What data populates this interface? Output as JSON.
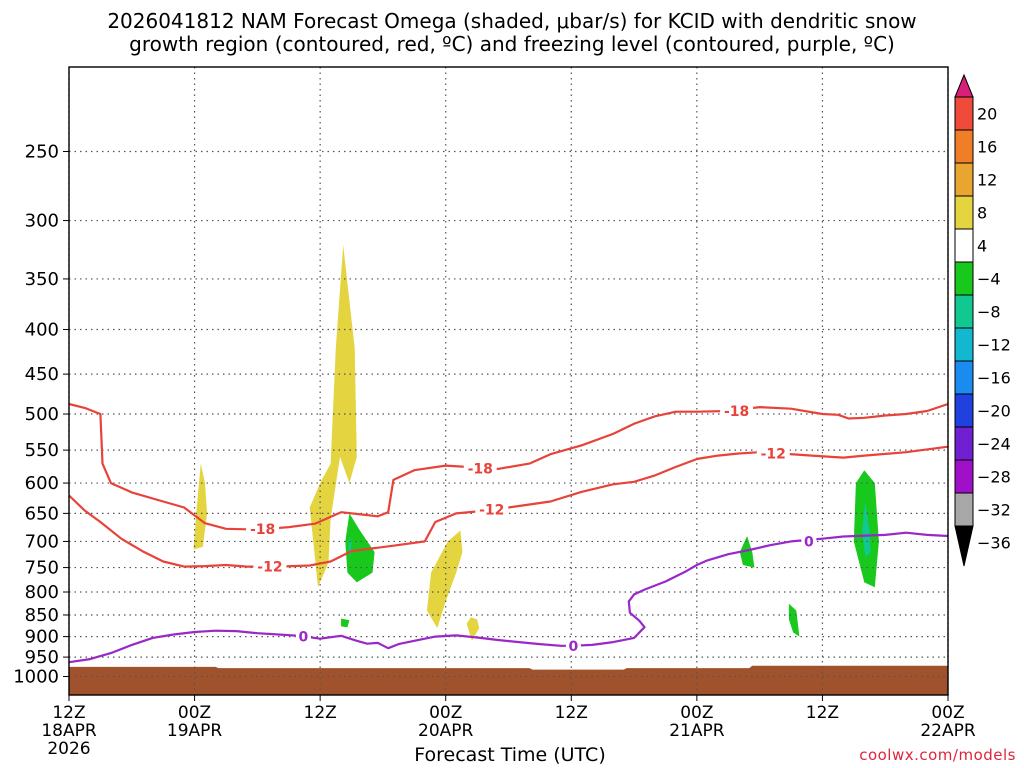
{
  "header": {
    "title_line1": "2026041812 NAM Forecast Omega (shaded, μbar/s) for KCID with dendritic snow",
    "title_line2": "growth region (contoured, red, ºC) and freezing level (contoured, purple, ºC)"
  },
  "credit": "coolwx.com/models",
  "chart_data": {
    "type": "heatmap",
    "title": "2026041812 NAM Forecast Omega (shaded, μbar/s) for KCID with dendritic snow growth region (contoured, red, ºC) and freezing level (contoured, purple, ºC)",
    "xlabel": "Forecast Time (UTC)",
    "ylabel": "",
    "x_axis": {
      "range_hours": [
        0,
        84
      ],
      "ticks": [
        {
          "hour": 0,
          "lines": [
            "12Z",
            "18APR",
            "2026"
          ]
        },
        {
          "hour": 12,
          "lines": [
            "00Z",
            "19APR"
          ]
        },
        {
          "hour": 24,
          "lines": [
            "12Z"
          ]
        },
        {
          "hour": 36,
          "lines": [
            "00Z",
            "20APR"
          ]
        },
        {
          "hour": 48,
          "lines": [
            "12Z"
          ]
        },
        {
          "hour": 60,
          "lines": [
            "00Z",
            "21APR"
          ]
        },
        {
          "hour": 72,
          "lines": [
            "12Z"
          ]
        },
        {
          "hour": 84,
          "lines": [
            "00Z",
            "22APR"
          ]
        }
      ]
    },
    "y_axis": {
      "scale": "log-pressure",
      "range_hpa": [
        1050,
        200
      ],
      "ticks": [
        250,
        300,
        350,
        400,
        450,
        500,
        550,
        600,
        650,
        700,
        750,
        800,
        850,
        900,
        950,
        1000
      ],
      "grid": true
    },
    "colorbar": {
      "levels": [
        "20",
        "16",
        "12",
        "8",
        "4",
        "−4",
        "−8",
        "−12",
        "−16",
        "−20",
        "−24",
        "−28",
        "−32",
        "−36"
      ],
      "colors": [
        "#d81f7a",
        "#f04a3a",
        "#f07e26",
        "#e8a530",
        "#e4d540",
        "#ffffff",
        "#18c81c",
        "#10c890",
        "#12b8d0",
        "#1a8cf0",
        "#2040e0",
        "#7020d0",
        "#a010c8",
        "#a8a8a8",
        "#000000"
      ]
    },
    "omega_regions": [
      {
        "level": "4 to 8",
        "color": "#e4d540",
        "points": [
          [
            12.6,
            570
          ],
          [
            12.2,
            640
          ],
          [
            11.9,
            715
          ],
          [
            12.8,
            710
          ],
          [
            13.2,
            650
          ],
          [
            13.0,
            600
          ]
        ]
      },
      {
        "level": "4 to 8",
        "color": "#e4d540",
        "points": [
          [
            26.2,
            320
          ],
          [
            27.3,
            420
          ],
          [
            27.5,
            560
          ],
          [
            26.8,
            600
          ],
          [
            25.9,
            560
          ],
          [
            25.0,
            660
          ],
          [
            24.8,
            740
          ],
          [
            23.8,
            790
          ],
          [
            23.0,
            640
          ],
          [
            24.0,
            600
          ],
          [
            25.0,
            570
          ],
          [
            25.5,
            420
          ]
        ]
      },
      {
        "level": "4 to 8",
        "color": "#e4d540",
        "points": [
          [
            37.4,
            680
          ],
          [
            36.2,
            700
          ],
          [
            34.6,
            760
          ],
          [
            34.2,
            840
          ],
          [
            35.2,
            880
          ],
          [
            36.0,
            820
          ],
          [
            37.0,
            760
          ],
          [
            37.6,
            720
          ]
        ]
      },
      {
        "level": "4 to 8",
        "color": "#e4d540",
        "points": [
          [
            38.4,
            855
          ],
          [
            38.0,
            870
          ],
          [
            38.5,
            910
          ],
          [
            39.2,
            880
          ],
          [
            39.0,
            860
          ]
        ]
      },
      {
        "level": "-4 to -8",
        "color": "#18c81c",
        "points": [
          [
            26.8,
            650
          ],
          [
            27.8,
            680
          ],
          [
            29.2,
            720
          ],
          [
            29.0,
            760
          ],
          [
            27.5,
            780
          ],
          [
            26.6,
            760
          ],
          [
            26.4,
            700
          ]
        ]
      },
      {
        "level": "-4 to -8",
        "color": "#18c81c",
        "points": [
          [
            26.0,
            858
          ],
          [
            26.8,
            862
          ],
          [
            26.6,
            878
          ],
          [
            26.0,
            876
          ]
        ]
      },
      {
        "level": "-4 to -8",
        "color": "#18c81c",
        "points": [
          [
            64.8,
            690
          ],
          [
            65.3,
            720
          ],
          [
            65.5,
            750
          ],
          [
            64.4,
            745
          ],
          [
            64.1,
            720
          ]
        ]
      },
      {
        "level": "-4 to -8",
        "color": "#18c81c",
        "points": [
          [
            68.8,
            825
          ],
          [
            69.5,
            840
          ],
          [
            69.8,
            900
          ],
          [
            69.2,
            890
          ],
          [
            68.8,
            860
          ]
        ]
      },
      {
        "level": "-4 to -8",
        "color": "#18c81c",
        "points": [
          [
            76.0,
            580
          ],
          [
            77.0,
            600
          ],
          [
            77.4,
            700
          ],
          [
            77.0,
            790
          ],
          [
            76.0,
            780
          ],
          [
            75.0,
            700
          ],
          [
            75.2,
            600
          ]
        ]
      },
      {
        "level": "-8 to -12",
        "color": "#10c890",
        "points": [
          [
            76.1,
            630
          ],
          [
            76.5,
            680
          ],
          [
            76.6,
            720
          ],
          [
            76.1,
            730
          ],
          [
            75.8,
            680
          ]
        ]
      },
      {
        "level": "-8 to -12",
        "color": "#10c890",
        "points": [
          [
            26.8,
            690
          ],
          [
            27.0,
            700
          ],
          [
            26.9,
            730
          ],
          [
            26.7,
            715
          ]
        ]
      }
    ],
    "ground_fill": {
      "color": "#a0522d",
      "bottom_hpa": 1050,
      "top_hpa_by_hour": [
        [
          0,
          975
        ],
        [
          14,
          975
        ],
        [
          14.3,
          978
        ],
        [
          44,
          978
        ],
        [
          44.3,
          982
        ],
        [
          53,
          982
        ],
        [
          53.3,
          978
        ],
        [
          65,
          978
        ],
        [
          65.3,
          972
        ],
        [
          84,
          972
        ]
      ]
    },
    "series": [
      {
        "name": "-18",
        "color": "#e8433a",
        "points": [
          [
            0,
            487
          ],
          [
            1.5,
            492
          ],
          [
            3,
            500
          ],
          [
            3.2,
            570
          ],
          [
            4,
            600
          ],
          [
            6,
            615
          ],
          [
            9,
            630
          ],
          [
            11,
            640
          ],
          [
            13,
            667
          ],
          [
            15,
            677
          ],
          [
            17,
            678
          ],
          [
            19,
            677
          ],
          [
            21,
            674
          ],
          [
            23.5,
            668
          ],
          [
            26,
            648
          ],
          [
            28,
            652
          ],
          [
            29.5,
            655
          ],
          [
            30.5,
            648
          ],
          [
            31,
            595
          ],
          [
            33,
            580
          ],
          [
            36,
            573
          ],
          [
            38,
            575
          ],
          [
            41,
            578
          ],
          [
            44,
            570
          ],
          [
            46,
            556
          ],
          [
            49,
            543
          ],
          [
            52,
            527
          ],
          [
            54,
            513
          ],
          [
            56,
            503
          ],
          [
            58,
            497
          ],
          [
            60,
            497
          ],
          [
            63,
            496
          ],
          [
            66,
            491
          ],
          [
            69,
            493
          ],
          [
            72,
            500
          ],
          [
            73.5,
            501
          ],
          [
            74.5,
            506
          ],
          [
            76,
            505
          ],
          [
            78,
            502
          ],
          [
            80,
            500
          ],
          [
            82,
            496
          ],
          [
            84,
            487
          ]
        ],
        "labels": [
          {
            "text": "-18",
            "x": 18.5,
            "p": 677
          },
          {
            "text": "-18",
            "x": 39.3,
            "p": 577
          },
          {
            "text": "-18",
            "x": 63.8,
            "p": 496
          }
        ]
      },
      {
        "name": "-12",
        "color": "#e8433a",
        "points": [
          [
            0,
            620
          ],
          [
            1.5,
            645
          ],
          [
            3,
            665
          ],
          [
            5,
            695
          ],
          [
            7,
            718
          ],
          [
            9,
            738
          ],
          [
            11,
            748
          ],
          [
            13,
            747
          ],
          [
            15,
            745
          ],
          [
            17,
            748
          ],
          [
            20,
            748
          ],
          [
            23,
            746
          ],
          [
            25,
            738
          ],
          [
            27,
            718
          ],
          [
            29,
            713
          ],
          [
            31,
            708
          ],
          [
            34,
            700
          ],
          [
            35,
            665
          ],
          [
            37,
            650
          ],
          [
            40,
            645
          ],
          [
            42,
            640
          ],
          [
            46,
            630
          ],
          [
            49,
            614
          ],
          [
            52,
            602
          ],
          [
            54,
            598
          ],
          [
            56,
            588
          ],
          [
            58,
            575
          ],
          [
            60,
            563
          ],
          [
            62,
            558
          ],
          [
            64,
            555
          ],
          [
            66,
            553
          ],
          [
            68,
            555
          ],
          [
            71,
            558
          ],
          [
            74,
            561
          ],
          [
            76,
            558
          ],
          [
            80,
            553
          ],
          [
            84,
            545
          ]
        ],
        "labels": [
          {
            "text": "-12",
            "x": 19.2,
            "p": 748
          },
          {
            "text": "-12",
            "x": 40.4,
            "p": 643
          },
          {
            "text": "-12",
            "x": 67.3,
            "p": 555
          }
        ]
      },
      {
        "name": "0",
        "color": "#9a28c8",
        "points": [
          [
            0,
            963
          ],
          [
            2,
            955
          ],
          [
            4,
            940
          ],
          [
            6,
            920
          ],
          [
            8,
            903
          ],
          [
            10,
            895
          ],
          [
            12,
            889
          ],
          [
            14,
            886
          ],
          [
            16,
            887
          ],
          [
            18,
            892
          ],
          [
            20,
            895
          ],
          [
            22,
            898
          ],
          [
            24,
            905
          ],
          [
            26,
            898
          ],
          [
            27.5,
            910
          ],
          [
            28.5,
            917
          ],
          [
            29.5,
            915
          ],
          [
            30.5,
            928
          ],
          [
            31.5,
            918
          ],
          [
            33,
            910
          ],
          [
            35,
            900
          ],
          [
            37,
            897
          ],
          [
            39,
            902
          ],
          [
            41,
            908
          ],
          [
            43,
            913
          ],
          [
            45,
            918
          ],
          [
            47,
            922
          ],
          [
            48,
            922
          ],
          [
            50,
            920
          ],
          [
            52,
            913
          ],
          [
            54,
            903
          ],
          [
            55,
            878
          ],
          [
            54.5,
            863
          ],
          [
            53.6,
            845
          ],
          [
            53.5,
            820
          ],
          [
            54,
            805
          ],
          [
            55,
            795
          ],
          [
            57,
            778
          ],
          [
            59,
            757
          ],
          [
            60,
            745
          ],
          [
            61,
            736
          ],
          [
            62,
            730
          ],
          [
            63,
            724
          ],
          [
            65,
            716
          ],
          [
            67,
            707
          ],
          [
            69,
            700
          ],
          [
            72,
            695
          ],
          [
            74,
            691
          ],
          [
            78,
            688
          ],
          [
            80,
            684
          ],
          [
            82,
            688
          ],
          [
            84,
            690
          ]
        ],
        "labels": [
          {
            "text": "0",
            "x": 22.4,
            "p": 900
          },
          {
            "text": "0",
            "x": 48.2,
            "p": 922
          },
          {
            "text": "0",
            "x": 70.7,
            "p": 700
          }
        ]
      }
    ]
  }
}
